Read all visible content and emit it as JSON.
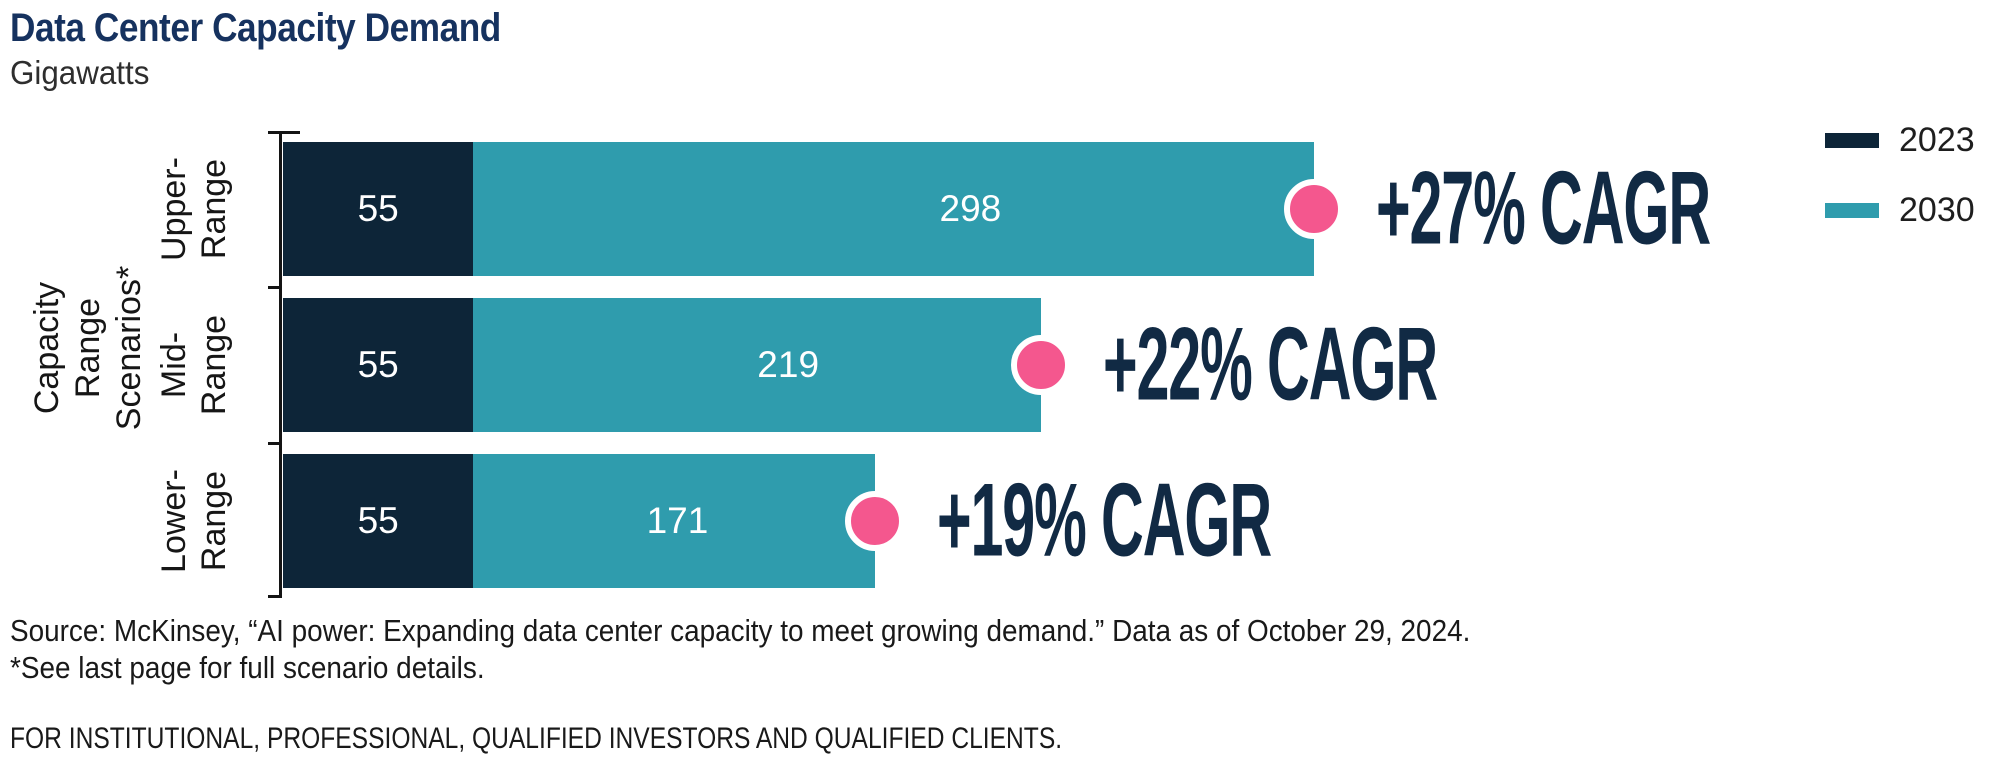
{
  "header": {
    "title": "Data Center Capacity Demand",
    "subtitle": "Gigawatts"
  },
  "colors": {
    "navy": "#0D2538",
    "teal": "#2F9CAD",
    "pink": "#F4578E",
    "title_navy": "#16325F",
    "cagr_navy": "#112A44"
  },
  "chart_data": {
    "type": "bar",
    "orientation": "horizontal",
    "title": "Data Center Capacity Demand",
    "unit": "Gigawatts",
    "y_axis_label_lines": [
      "Capacity Range",
      "Scenarios*"
    ],
    "categories": [
      "Upper-Range",
      "Mid-Range",
      "Lower-Range"
    ],
    "series": [
      {
        "name": "2023",
        "values": [
          55,
          55,
          55
        ]
      },
      {
        "name": "2030",
        "values": [
          298,
          219,
          171
        ]
      }
    ],
    "legend": [
      {
        "name": "2023",
        "color": "#0D2538"
      },
      {
        "name": "2030",
        "color": "#2F9CAD"
      }
    ],
    "legend_position": "top-right",
    "grid": false,
    "x_range_gw": [
      0,
      340
    ],
    "rows": [
      {
        "category_lines": [
          "Upper-",
          "Range"
        ],
        "value_2023": 55,
        "value_2030": 298,
        "cagr": "+27% CAGR"
      },
      {
        "category_lines": [
          "Mid-",
          "Range"
        ],
        "value_2023": 55,
        "value_2030": 219,
        "cagr": "+22% CAGR"
      },
      {
        "category_lines": [
          "Lower-",
          "Range"
        ],
        "value_2023": 55,
        "value_2030": 171,
        "cagr": "+19% CAGR"
      }
    ]
  },
  "footer": {
    "source_line": "Source: McKinsey, “AI power: Expanding data center capacity to meet growing demand.” Data as of October 29, 2024.",
    "footnote": "*See last page for full scenario details.",
    "disclaimer": "FOR INSTITUTIONAL, PROFESSIONAL, QUALIFIED INVESTORS AND QUALIFIED CLIENTS."
  }
}
